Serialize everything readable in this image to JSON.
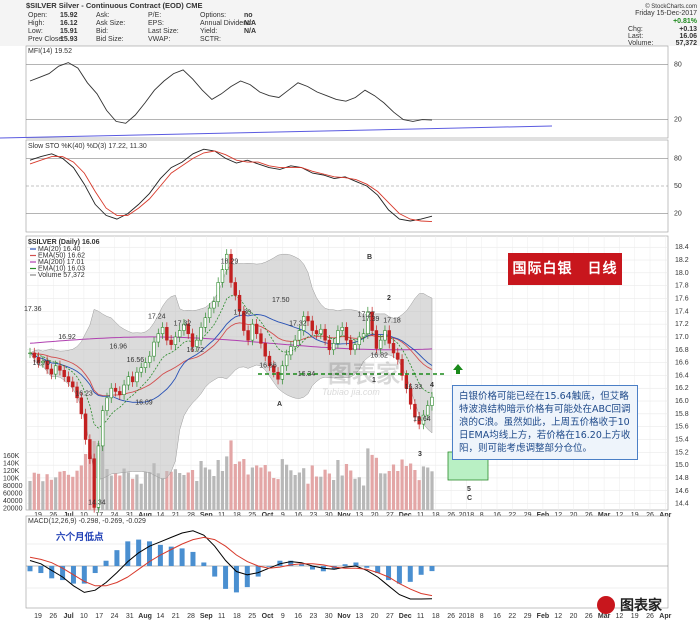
{
  "header": {
    "symbol_line": "$SILVER Silver - Continuous Contract (EOD) CME",
    "site": "© StockCharts.com",
    "date": "Friday 15-Dec-2017",
    "change_pct": "+0.81%",
    "quote_left": [
      [
        "Open:",
        "15.92"
      ],
      [
        "High:",
        "16.12"
      ],
      [
        "Low:",
        "15.91"
      ],
      [
        "Prev Close:",
        "15.93"
      ]
    ],
    "quote_mid": [
      "Ask:",
      "Ask Size:",
      "Bid:",
      "Bid Size:"
    ],
    "quote_mid2": [
      [
        "P/E:",
        ""
      ],
      [
        "EPS:",
        ""
      ],
      [
        "Last Size:",
        ""
      ],
      [
        "VWAP:",
        ""
      ]
    ],
    "quote_mid3": [
      [
        "Options:",
        "no"
      ],
      [
        "Annual Dividend:",
        "N/A"
      ],
      [
        "Yield:",
        "N/A"
      ],
      [
        "SCTR:",
        ""
      ]
    ],
    "quote_right": [
      [
        "Chg:",
        "+0.13"
      ],
      [
        "Last:",
        "16.06"
      ],
      [
        "Volume:",
        "57,372"
      ]
    ]
  },
  "panels": {
    "mfi_label": "MFI(14) 19.52",
    "sto_label": "Slow STO %K(40) %D(3) 17.22, 11.30",
    "price_label": "$SILVER (Daily) 16.06",
    "legend": [
      "MA(20) 16.40",
      "EMA(50) 16.62",
      "MA(200) 17.01",
      "EMA(10) 16.03",
      "Volume 57,372"
    ],
    "macd_label": "MACD(12,26,9) -0.298, -0.269, -0.029"
  },
  "annotations": {
    "badge": "国际白银　日线",
    "note": "白银价格可能已经在15.64触底，但艾略特波浪结构暗示价格有可能处在ABC回调浪的C浪。虽然如此，上周五价格收于10日EMA均线上方，若价格在16.20上方收阳，则可能考虑调整部分仓位。",
    "six_month_low": "六个月低点",
    "wave_labels": [
      "A",
      "B",
      "1",
      "2",
      "3",
      "4",
      "5",
      "C"
    ],
    "logo_text": "图表家",
    "watermark": "图表家",
    "watermark_sub": "Tubiao jia.com"
  },
  "colors": {
    "candle_up": "#2d8a2d",
    "candle_down": "#c22020",
    "ma20": "#2851b5",
    "ema50": "#d25050",
    "ma200": "#b040b0",
    "ema10": "#2a8a2a",
    "band": "#bdbdbd",
    "macd_line": "#000000",
    "signal_line": "#d83a2c",
    "hist": "#4a8fd0",
    "badge": "#c8161d"
  },
  "chart_data": {
    "type": "line",
    "x_ticks": [
      "19",
      "26",
      "Jul",
      "10",
      "17",
      "24",
      "31",
      "Aug",
      "14",
      "21",
      "28",
      "Sep",
      "11",
      "18",
      "25",
      "Oct",
      "9",
      "16",
      "23",
      "30",
      "Nov",
      "13",
      "20",
      "27",
      "Dec",
      "11",
      "18",
      "26",
      "2018",
      "8",
      "16",
      "22",
      "29",
      "Feb",
      "12",
      "20",
      "26",
      "Mar",
      "12",
      "19",
      "26",
      "Apr"
    ],
    "price_axis": [
      14.4,
      14.6,
      14.8,
      15.0,
      15.2,
      15.4,
      15.6,
      15.8,
      16.0,
      16.2,
      16.4,
      16.6,
      16.8,
      17.0,
      17.2,
      17.4,
      17.6,
      17.8,
      18.0,
      18.2,
      18.4
    ],
    "volume_axis": [
      "160K",
      "140K",
      "120K",
      "100K",
      "80000",
      "60000",
      "40000",
      "20000"
    ],
    "mfi_axis": [
      80,
      20
    ],
    "sto_axis": [
      80,
      50,
      20
    ],
    "price_series": [
      16.75,
      16.68,
      16.6,
      16.62,
      16.5,
      16.42,
      16.55,
      16.48,
      16.38,
      16.3,
      16.22,
      16.05,
      15.8,
      15.4,
      15.1,
      14.34,
      15.3,
      15.85,
      16.05,
      16.2,
      16.15,
      16.1,
      16.25,
      16.38,
      16.3,
      16.45,
      16.52,
      16.6,
      16.7,
      16.92,
      17.05,
      17.15,
      16.95,
      16.88,
      17.0,
      17.1,
      17.2,
      17.05,
      16.85,
      16.95,
      17.15,
      17.3,
      17.45,
      17.55,
      17.85,
      18.05,
      18.29,
      17.85,
      17.65,
      17.4,
      17.1,
      16.95,
      17.2,
      17.05,
      16.9,
      16.7,
      16.55,
      16.45,
      16.34,
      16.55,
      16.72,
      16.85,
      16.95,
      17.1,
      17.32,
      17.25,
      17.1,
      17.05,
      17.12,
      16.95,
      16.8,
      16.9,
      17.1,
      17.15,
      16.95,
      16.8,
      16.88,
      17.0,
      17.05,
      17.39,
      17.1,
      16.82,
      16.95,
      17.1,
      16.9,
      16.75,
      16.65,
      16.4,
      16.2,
      15.95,
      15.75,
      15.64,
      15.78,
      15.93,
      16.06
    ],
    "price_labels": [
      {
        "text": "17.36"
      },
      {
        "text": "16.70"
      },
      {
        "text": "16.92"
      },
      {
        "text": "16.23"
      },
      {
        "text": "14.34"
      },
      {
        "text": "16.96"
      },
      {
        "text": "16.56"
      },
      {
        "text": "16.09"
      },
      {
        "text": "17.24"
      },
      {
        "text": "17.32"
      },
      {
        "text": "16.72"
      },
      {
        "text": "18.29"
      },
      {
        "text": "17.30"
      },
      {
        "text": "16.66"
      },
      {
        "text": "17.50"
      },
      {
        "text": "17.32"
      },
      {
        "text": "16.34"
      },
      {
        "text": "17.39"
      },
      {
        "text": "17.27"
      },
      {
        "text": "16.82"
      },
      {
        "text": "17.18"
      },
      {
        "text": "16.33"
      },
      {
        "text": "15.64"
      }
    ],
    "mfi_series": [
      62,
      66,
      70,
      78,
      82,
      76,
      60,
      48,
      30,
      18,
      16,
      25,
      38,
      52,
      62,
      70,
      74,
      64,
      52,
      42,
      48,
      56,
      62,
      58,
      50,
      46,
      44,
      52,
      60,
      56,
      50,
      46,
      42,
      40,
      44,
      52,
      46,
      38,
      28,
      20,
      18,
      20,
      19.52
    ],
    "sto_k_series": [
      78,
      82,
      85,
      80,
      70,
      52,
      30,
      18,
      14,
      20,
      30,
      42,
      58,
      70,
      76,
      85,
      90,
      88,
      80,
      75,
      78,
      74,
      70,
      68,
      72,
      70,
      64,
      62,
      58,
      60,
      55,
      50,
      40,
      24,
      14,
      12,
      14,
      17.22
    ],
    "sto_d_series": [
      74,
      78,
      82,
      82,
      76,
      64,
      44,
      26,
      18,
      18,
      26,
      36,
      50,
      64,
      72,
      80,
      86,
      88,
      84,
      78,
      76,
      76,
      72,
      70,
      70,
      70,
      66,
      63,
      60,
      59,
      57,
      52,
      44,
      32,
      20,
      14,
      12,
      11.3
    ],
    "macd_series": [
      0.05,
      0.02,
      -0.04,
      -0.1,
      -0.18,
      -0.24,
      -0.22,
      -0.15,
      -0.06,
      0.04,
      0.12,
      0.18,
      0.22,
      0.26,
      0.3,
      0.32,
      0.28,
      0.18,
      0.05,
      -0.05,
      -0.08,
      -0.06,
      -0.02,
      0.02,
      0.04,
      0.03,
      0.0,
      -0.02,
      -0.03,
      -0.01,
      0.0,
      -0.04,
      -0.1,
      -0.18,
      -0.26,
      -0.3,
      -0.3,
      -0.298
    ],
    "signal_series": [
      0.08,
      0.06,
      0.03,
      -0.02,
      -0.08,
      -0.14,
      -0.18,
      -0.18,
      -0.15,
      -0.1,
      -0.03,
      0.04,
      0.1,
      0.15,
      0.2,
      0.24,
      0.26,
      0.24,
      0.18,
      0.1,
      0.04,
      0.0,
      -0.02,
      -0.01,
      0.01,
      0.02,
      0.02,
      0.01,
      -0.01,
      -0.02,
      -0.02,
      -0.03,
      -0.06,
      -0.1,
      -0.16,
      -0.21,
      -0.25,
      -0.269
    ]
  }
}
